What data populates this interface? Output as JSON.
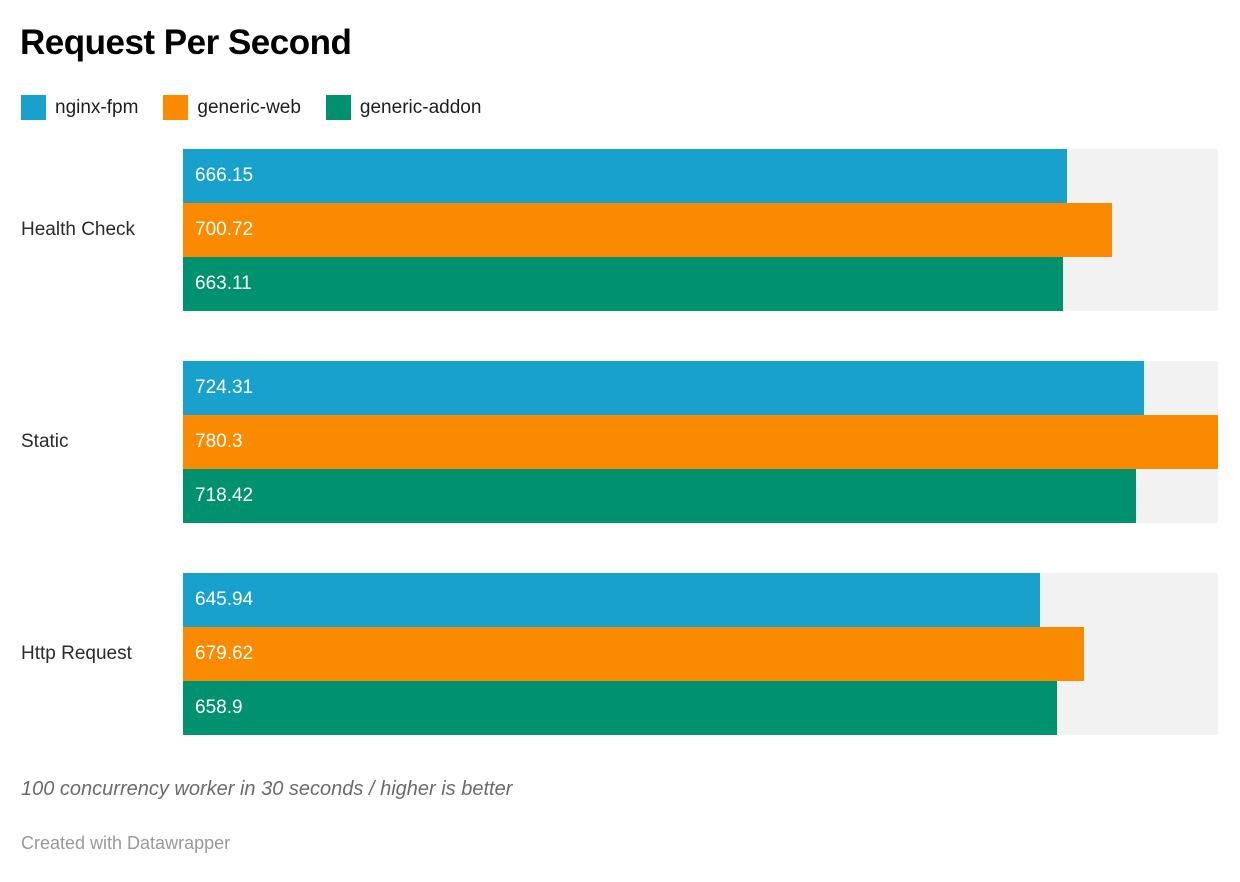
{
  "title": "Request Per Second",
  "legend": {
    "items": [
      {
        "label": "nginx-fpm",
        "color": "#18A1CD"
      },
      {
        "label": "generic-web",
        "color": "#FA8B00"
      },
      {
        "label": "generic-addon",
        "color": "#00916F"
      }
    ]
  },
  "chart_data": {
    "type": "bar",
    "orientation": "horizontal",
    "title": "Request Per Second",
    "categories": [
      "Health Check",
      "Static",
      "Http Request"
    ],
    "series": [
      {
        "name": "nginx-fpm",
        "color": "#18A1CD",
        "values": [
          666.15,
          724.31,
          645.94
        ]
      },
      {
        "name": "generic-web",
        "color": "#FA8B00",
        "values": [
          700.72,
          780.3,
          679.62
        ]
      },
      {
        "name": "generic-addon",
        "color": "#00916F",
        "values": [
          663.11,
          718.42,
          658.9
        ]
      }
    ],
    "xlim": [
      0,
      780.3
    ],
    "value_labels_shown": true,
    "track_color": "#F2F2F2",
    "legend_position": "top",
    "grid": false
  },
  "footer": {
    "note": "100 concurrency worker in 30 seconds / higher is better",
    "attribution": "Created with Datawrapper"
  }
}
